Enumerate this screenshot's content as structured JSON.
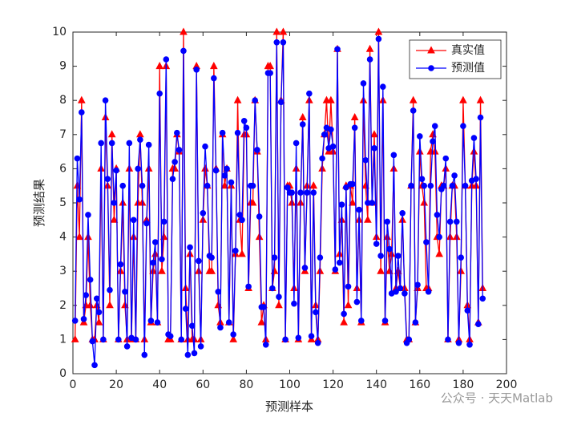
{
  "chart_data": {
    "type": "line",
    "xlabel": "预测样本",
    "ylabel": "预测结果",
    "x": [
      1,
      2,
      3,
      4,
      5,
      6,
      7,
      8,
      9,
      10,
      11,
      12,
      13,
      14,
      15,
      16,
      17,
      18,
      19,
      20,
      21,
      22,
      23,
      24,
      25,
      26,
      27,
      28,
      29,
      30,
      31,
      32,
      33,
      34,
      35,
      36,
      37,
      38,
      39,
      40,
      41,
      42,
      43,
      44,
      45,
      46,
      47,
      48,
      49,
      50,
      51,
      52,
      53,
      54,
      55,
      56,
      57,
      58,
      59,
      60,
      61,
      62,
      63,
      64,
      65,
      66,
      67,
      68,
      69,
      70,
      71,
      72,
      73,
      74,
      75,
      76,
      77,
      78,
      79,
      80,
      81,
      82,
      83,
      84,
      85,
      86,
      87,
      88,
      89,
      90,
      91,
      92,
      93,
      94,
      95,
      96,
      97,
      98,
      99,
      100,
      101,
      102,
      103,
      104,
      105,
      106,
      107,
      108,
      109,
      110,
      111,
      112,
      113,
      114,
      115,
      116,
      117,
      118,
      119,
      120,
      121,
      122,
      123,
      124,
      125,
      126,
      127,
      128,
      129,
      130,
      131,
      132,
      133,
      134,
      135,
      136,
      137,
      138,
      139,
      140,
      141,
      142,
      143,
      144,
      145,
      146,
      147,
      148,
      149,
      150,
      151,
      152,
      153,
      154,
      155,
      156,
      157,
      158,
      159,
      160,
      161,
      162,
      163,
      164,
      165,
      166,
      167,
      168,
      169,
      170,
      171,
      172,
      173,
      174,
      175,
      176,
      177,
      178,
      179,
      180,
      181,
      182,
      183,
      184,
      185,
      186,
      187,
      188,
      189
    ],
    "series": [
      {
        "name": "真实值",
        "color": "#ff0000",
        "marker": "triangle",
        "values": [
          1,
          5.5,
          4,
          8,
          1.5,
          2,
          4,
          2,
          1,
          1,
          2,
          1.5,
          6,
          1,
          7.5,
          5.5,
          2,
          7,
          4.5,
          6,
          1,
          3,
          5,
          2,
          1,
          6,
          1,
          4,
          1,
          5,
          7,
          5,
          1,
          4.5,
          6,
          1.5,
          3,
          3.5,
          1.5,
          9,
          3,
          4,
          9,
          1,
          1,
          6,
          6,
          7,
          6.5,
          1,
          10,
          2.5,
          1,
          3.5,
          1,
          1,
          9,
          3,
          1,
          4.5,
          6,
          5.5,
          3,
          3,
          9,
          6,
          2,
          1.5,
          7,
          5.5,
          6,
          1.5,
          5.5,
          1,
          3.5,
          8,
          4.5,
          3.5,
          7,
          7,
          2.5,
          5,
          5,
          8,
          6.5,
          4,
          1.5,
          2,
          1,
          9,
          9,
          2.5,
          3,
          10,
          2,
          8,
          10,
          1,
          5.5,
          5.5,
          5,
          2.5,
          6,
          1,
          5,
          7.5,
          3,
          5.5,
          8,
          1,
          5.5,
          2,
          1,
          3,
          6,
          7,
          8,
          6.5,
          8,
          6.5,
          3,
          9.5,
          3.5,
          4.5,
          1.5,
          5.5,
          2,
          5.5,
          5,
          7.5,
          2.5,
          4.5,
          1.5,
          8,
          5.5,
          4.5,
          9.5,
          5,
          7,
          4,
          10,
          3,
          8,
          1.5,
          4,
          3,
          3.5,
          6,
          2.5,
          3,
          2.5,
          4.5,
          2.5,
          1,
          1,
          5.5,
          8,
          1.5,
          2.5,
          6.5,
          5.5,
          5,
          2.5,
          2.5,
          6.5,
          7,
          6.5,
          4,
          3.5,
          5.5,
          5.5,
          6,
          1,
          4,
          5.5,
          5.5,
          4,
          1,
          3,
          8,
          5.5,
          2,
          1,
          5.5,
          6.5,
          5.5,
          1.5,
          8,
          2.5
        ]
      },
      {
        "name": "预测值",
        "color": "#0000ff",
        "marker": "circle",
        "values": [
          1.55,
          6.3,
          5.1,
          7.65,
          1.6,
          2.3,
          4.65,
          2.75,
          0.95,
          0.25,
          2.2,
          1.8,
          6.75,
          1,
          8,
          5.7,
          2.45,
          6.75,
          5,
          5.95,
          1,
          3.2,
          5.5,
          2.4,
          0.8,
          6.75,
          1.05,
          4.5,
          1,
          6,
          6.85,
          5.5,
          0.55,
          4.4,
          6.7,
          1.55,
          3.25,
          3.85,
          1.5,
          8.2,
          3.35,
          4.45,
          9.2,
          1.15,
          1.1,
          5.7,
          6.2,
          7.05,
          6.55,
          1,
          9.45,
          1.9,
          0.55,
          3.7,
          1.4,
          0.6,
          8.9,
          3.3,
          0.8,
          4.7,
          6.65,
          5.5,
          3.45,
          3.4,
          8.65,
          5.95,
          2.4,
          1.35,
          7.05,
          5.8,
          6,
          1.5,
          5.6,
          1.15,
          3.6,
          7.05,
          4.65,
          4.5,
          7.4,
          7.2,
          2.55,
          5.5,
          5.5,
          8,
          6.55,
          4.6,
          1.95,
          1.95,
          0.85,
          8.8,
          8.8,
          2.5,
          3.4,
          9.7,
          2.25,
          7.95,
          9.7,
          1,
          5.45,
          5.3,
          5.3,
          2.05,
          6.75,
          1.05,
          5.3,
          7.3,
          3.1,
          5.3,
          8.2,
          1.1,
          5.3,
          1.8,
          0.9,
          3.4,
          6.3,
          7,
          7.2,
          6.6,
          7.15,
          6.65,
          3.05,
          9.5,
          3.25,
          4.95,
          1.75,
          5.45,
          2.55,
          5.55,
          5.55,
          7.2,
          2.1,
          4.8,
          1.55,
          8.5,
          6.25,
          5,
          9.2,
          5,
          6.6,
          3.8,
          9.8,
          3.45,
          8.4,
          1.55,
          4.45,
          3.65,
          2.35,
          6.4,
          2.4,
          3.45,
          2.5,
          4.7,
          2.35,
          0.9,
          1,
          5.5,
          7.7,
          1.5,
          2.6,
          6.95,
          5.7,
          5.5,
          3.85,
          2.4,
          5.5,
          6.8,
          7.25,
          4.65,
          4,
          5.4,
          5.5,
          6.3,
          1,
          4.45,
          5.5,
          5.8,
          4.45,
          0.9,
          3.4,
          7.25,
          5.5,
          1.85,
          0.85,
          5.65,
          6.9,
          5.7,
          1.45,
          7.5,
          2.2
        ]
      }
    ],
    "xlim": [
      0,
      200
    ],
    "xticks": [
      0,
      20,
      40,
      60,
      80,
      100,
      120,
      140,
      160,
      180,
      200
    ],
    "ylim": [
      0,
      10
    ],
    "yticks": [
      0,
      1,
      2,
      3,
      4,
      5,
      6,
      7,
      8,
      9,
      10
    ],
    "legend": "upper right",
    "watermark": "公众号 · 天天Matlab"
  }
}
